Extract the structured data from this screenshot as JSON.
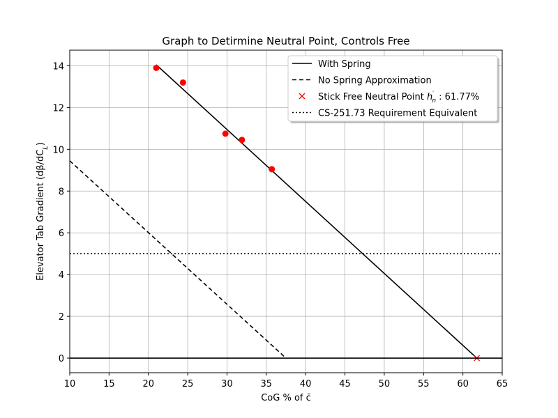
{
  "chart_data": {
    "type": "line",
    "title": "Graph to Detirmine Neutral Point, Controls Free",
    "xlabel": "CoG % of c̄",
    "ylabel": "Elevator Tab Gradient (dβ/dC_L)",
    "xlim": [
      10,
      65
    ],
    "ylim": [
      -0.7,
      14.75
    ],
    "xticks": [
      10,
      15,
      20,
      25,
      30,
      35,
      40,
      45,
      50,
      55,
      60,
      65
    ],
    "yticks": [
      0,
      2,
      4,
      6,
      8,
      10,
      12,
      14
    ],
    "grid": true,
    "legend_position": "top-right",
    "series": [
      {
        "name": "With Spring",
        "kind": "line",
        "style": "solid",
        "color": "#000000",
        "x": [
          21.0,
          61.77
        ],
        "y": [
          14.05,
          0
        ]
      },
      {
        "name": "No Spring Approximation",
        "kind": "line",
        "style": "dashed",
        "color": "#000000",
        "x": [
          10,
          37.5
        ],
        "y": [
          9.45,
          0
        ]
      },
      {
        "name": "Stick Free Neutral Point h'_n : 61.77%",
        "kind": "marker",
        "marker": "x",
        "color": "#ff0000",
        "x": [
          61.77
        ],
        "y": [
          0
        ]
      },
      {
        "name": "CS-251.73 Requirement Equivalent",
        "kind": "hline",
        "style": "dotted",
        "color": "#000000",
        "y": 5
      },
      {
        "name": "",
        "kind": "points",
        "marker": "o",
        "color": "#ff0000",
        "x": [
          21.0,
          24.4,
          29.8,
          31.9,
          35.7
        ],
        "y": [
          13.9,
          13.2,
          10.75,
          10.45,
          9.05
        ]
      },
      {
        "name": "",
        "kind": "hline",
        "style": "solid",
        "color": "#000000",
        "y": 0
      }
    ]
  }
}
